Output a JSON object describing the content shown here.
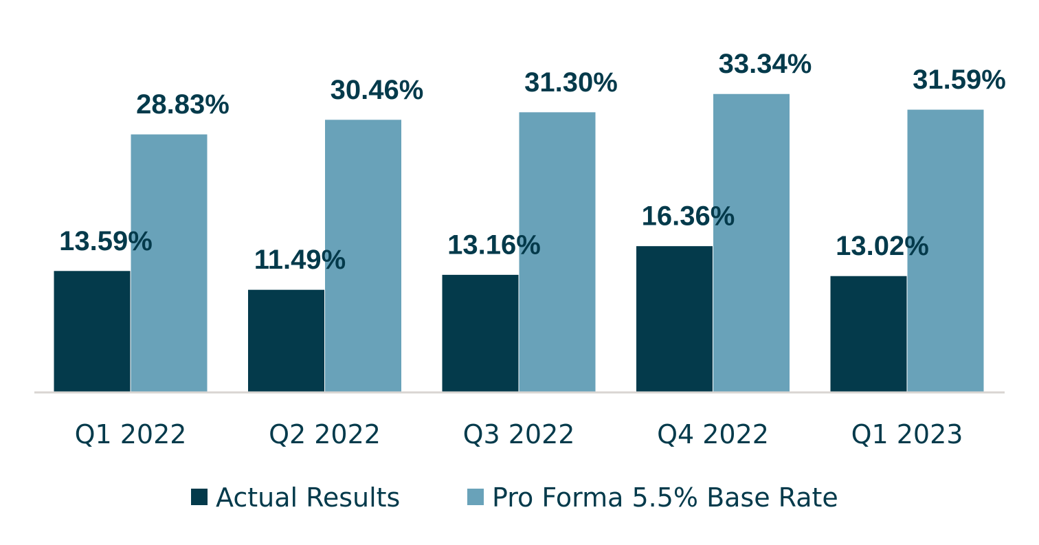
{
  "chart_data": {
    "type": "bar",
    "categories": [
      "Q1 2022",
      "Q2 2022",
      "Q3 2022",
      "Q4 2022",
      "Q1 2023"
    ],
    "series": [
      {
        "name": "Actual Results",
        "values": [
          13.59,
          11.49,
          13.16,
          16.36,
          13.02
        ],
        "labels": [
          "13.59%",
          "11.49%",
          "13.16%",
          "16.36%",
          "13.02%"
        ],
        "color": "#043a4b"
      },
      {
        "name": "Pro Forma 5.5% Base Rate",
        "values": [
          28.83,
          30.46,
          31.3,
          33.34,
          31.59
        ],
        "labels": [
          "28.83%",
          "30.46%",
          "31.30%",
          "33.34%",
          "31.59%"
        ],
        "color": "#69a2b9"
      }
    ],
    "ylim": [
      0,
      36
    ],
    "grid": false,
    "legend": "bottom",
    "text_color": "#043a4b",
    "axis_color": "#d9d5d2"
  }
}
